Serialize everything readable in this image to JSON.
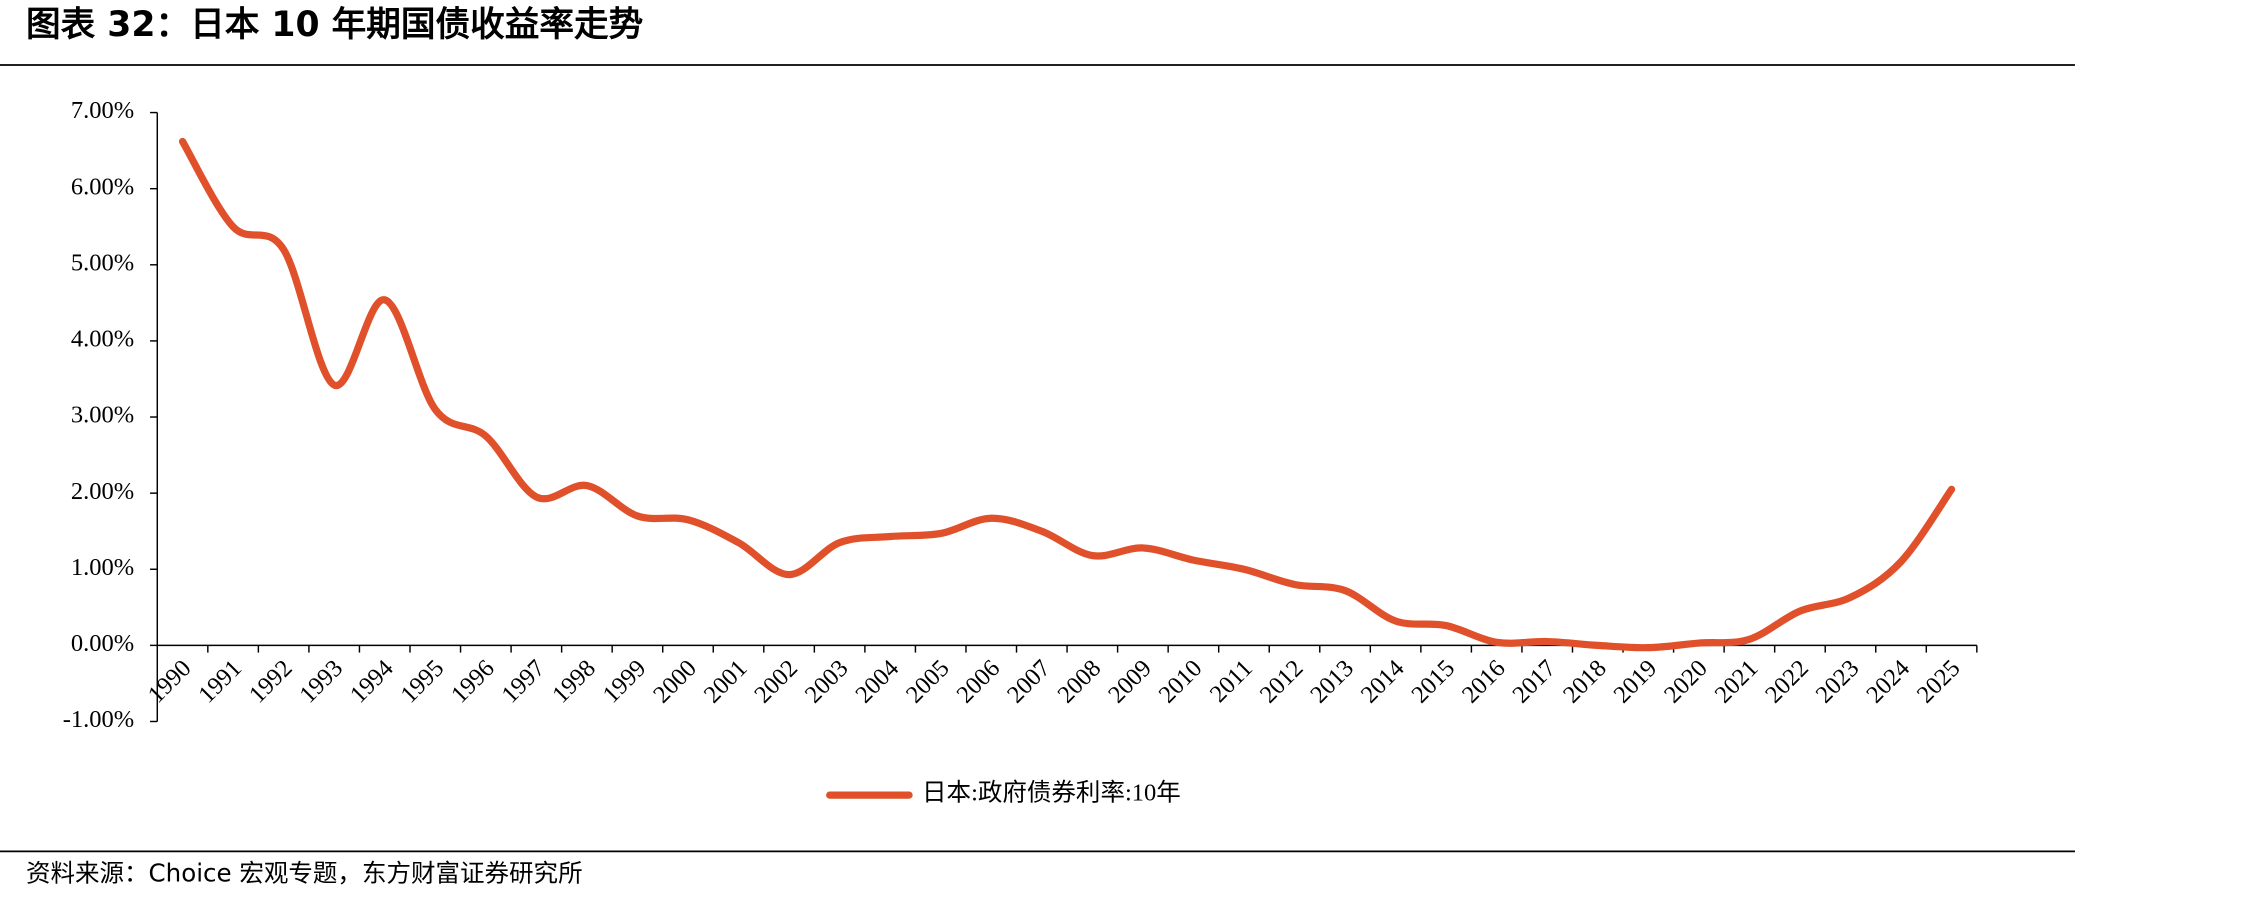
{
  "chart_data": {
    "type": "line",
    "title": "图表 32：日本 10 年期国债收益率走势",
    "source": "资料来源：Choice 宏观专题，东方财富证券研究所",
    "categories": [
      "1990",
      "1991",
      "1992",
      "1993",
      "1994",
      "1995",
      "1996",
      "1997",
      "1998",
      "1999",
      "2000",
      "2001",
      "2002",
      "2003",
      "2004",
      "2005",
      "2006",
      "2007",
      "2008",
      "2009",
      "2010",
      "2011",
      "2012",
      "2013",
      "2014",
      "2015",
      "2016",
      "2017",
      "2018",
      "2019",
      "2020",
      "2021",
      "2022",
      "2023",
      "2024",
      "2025"
    ],
    "series": [
      {
        "name": "日本:政府债券利率:10年",
        "color": "#e0502a",
        "values": [
          6.62,
          5.5,
          5.2,
          3.42,
          4.54,
          3.1,
          2.75,
          1.95,
          2.1,
          1.7,
          1.65,
          1.35,
          0.93,
          1.35,
          1.43,
          1.47,
          1.67,
          1.5,
          1.18,
          1.28,
          1.12,
          1.0,
          0.8,
          0.72,
          0.32,
          0.26,
          0.04,
          0.05,
          0.0,
          -0.03,
          0.03,
          0.08,
          0.45,
          0.63,
          1.1,
          2.05
        ]
      }
    ],
    "ylim": [
      -1,
      7
    ],
    "yticks": [
      {
        "value": -1,
        "label": "-1.00%"
      },
      {
        "value": 0,
        "label": "0.00%"
      },
      {
        "value": 1,
        "label": "1.00%"
      },
      {
        "value": 2,
        "label": "2.00%"
      },
      {
        "value": 3,
        "label": "3.00%"
      },
      {
        "value": 4,
        "label": "4.00%"
      },
      {
        "value": 5,
        "label": "5.00%"
      },
      {
        "value": 6,
        "label": "6.00%"
      },
      {
        "value": 7,
        "label": "7.00%"
      }
    ],
    "legend": "bottom"
  }
}
